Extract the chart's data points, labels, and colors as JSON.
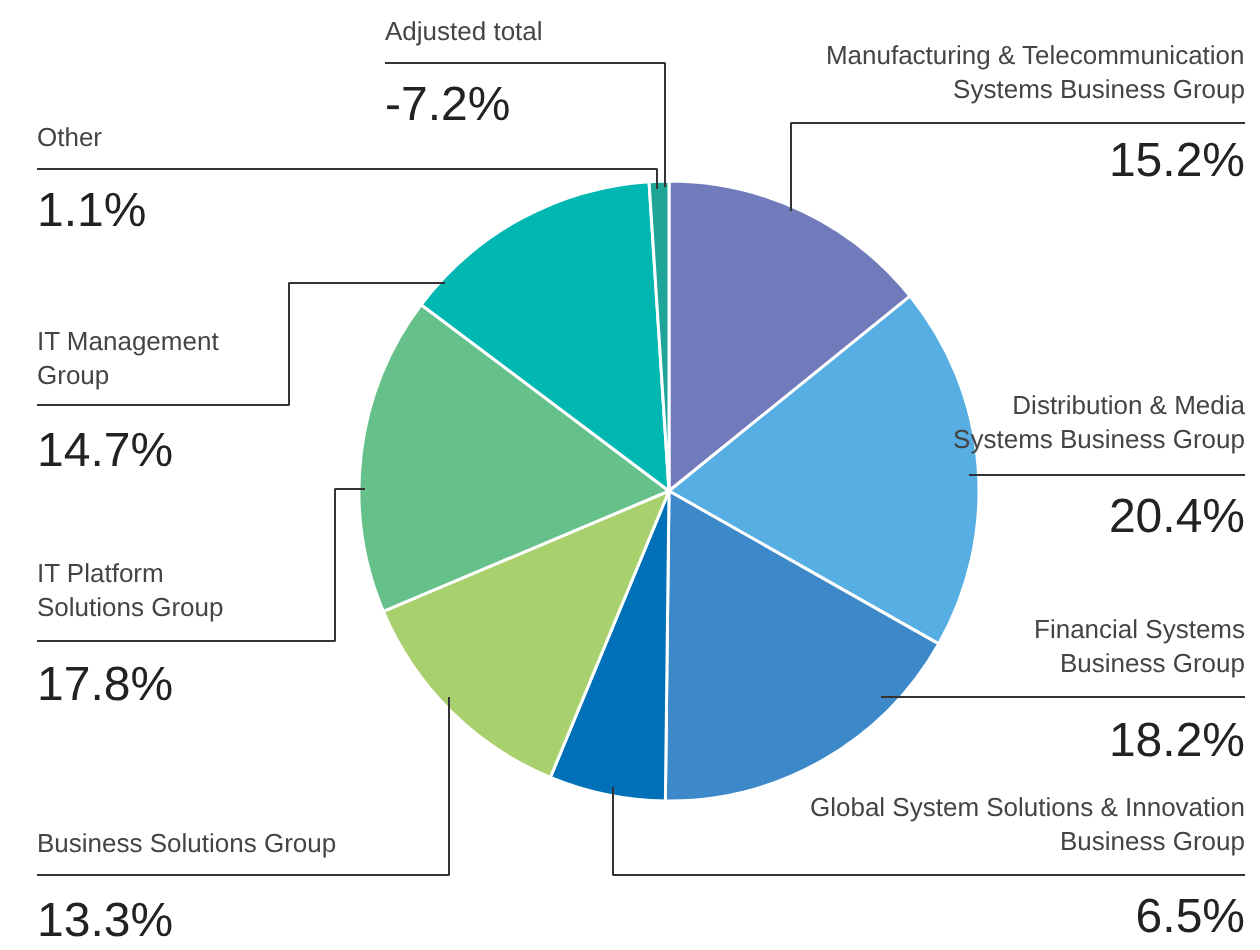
{
  "chart_data": {
    "type": "pie",
    "categories": [
      "Manufacturing & Telecommunication\nSystems Business Group",
      "Distribution & Media\nSystems Business Group",
      "Financial Systems\nBusiness Group",
      "Global System Solutions & Innovation\nBusiness Group",
      "Business Solutions Group",
      "IT Platform\nSolutions Group",
      "IT Management\nGroup",
      "Other"
    ],
    "values": [
      15.2,
      20.4,
      18.2,
      6.5,
      13.3,
      17.8,
      14.7,
      1.1
    ],
    "value_labels": [
      "15.2%",
      "20.4%",
      "18.2%",
      "6.5%",
      "13.3%",
      "17.8%",
      "14.7%",
      "1.1%"
    ],
    "colors": [
      "#717bbb",
      "#56aee2",
      "#3c88c8",
      "#0070b8",
      "#a8d06c",
      "#65c08a",
      "#00b7b2",
      "#1fa598"
    ],
    "annotations": [
      "Adjusted total",
      "-7.2%"
    ]
  }
}
